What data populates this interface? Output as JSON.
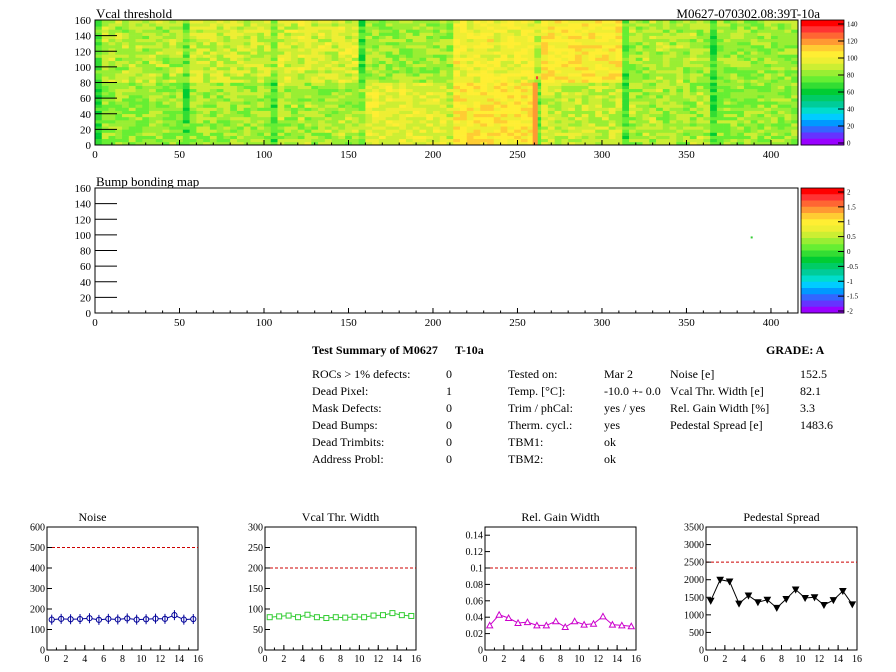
{
  "header": {
    "map1_title": "Vcal threshold",
    "map1_id": "M0627-070302.08:39T-10a",
    "map2_title": "Bump bonding map"
  },
  "maps": {
    "x_ticks": [
      "0",
      "50",
      "100",
      "150",
      "200",
      "250",
      "300",
      "350",
      "400"
    ],
    "y_ticks": [
      "0",
      "20",
      "40",
      "60",
      "80",
      "100",
      "120",
      "140",
      "160"
    ],
    "xlim": [
      0,
      416
    ],
    "ylim": [
      0,
      160
    ],
    "palette_1": [
      "#9900ff",
      "#6633ff",
      "#3366ff",
      "#0099ff",
      "#00ccff",
      "#00ddcc",
      "#00cc99",
      "#00cc66",
      "#00cc33",
      "#33dd33",
      "#66ee33",
      "#99ee33",
      "#ccee33",
      "#eeee33",
      "#ffee33",
      "#ffcc33",
      "#ff9933",
      "#ff6633",
      "#ff3333",
      "#ff0000"
    ],
    "palette_2": [
      "#9900ff",
      "#6633ff",
      "#3366ff",
      "#0099ff",
      "#00ccff",
      "#00ddcc",
      "#00cc99",
      "#00cc66",
      "#00cc33",
      "#33dd33",
      "#66ee33",
      "#99ee33",
      "#ccee33",
      "#eeee33",
      "#ffee33",
      "#ffcc33",
      "#ff9933",
      "#ff6633",
      "#ff3333",
      "#ff0000"
    ],
    "scale1_labels": [
      "140",
      "120",
      "100",
      "80",
      "60",
      "40",
      "20",
      "0"
    ],
    "scale2_labels": [
      "2",
      "1.5",
      "1",
      "0.5",
      "0",
      "-0.5",
      "-1",
      "-1.5",
      "-2"
    ]
  },
  "summary": {
    "title": "Test Summary of M0627",
    "subtitle": "T-10a",
    "grade": "GRADE:  A",
    "left": [
      {
        "label": "ROCs > 1% defects:",
        "value": "0"
      },
      {
        "label": "Dead Pixel:",
        "value": "1"
      },
      {
        "label": "Mask Defects:",
        "value": "0"
      },
      {
        "label": "Dead Bumps:",
        "value": "0"
      },
      {
        "label": "Dead Trimbits:",
        "value": "0"
      },
      {
        "label": "Address Probl:",
        "value": "0"
      }
    ],
    "middle": [
      {
        "label": "Tested on:",
        "value": "Mar 2"
      },
      {
        "label": "Temp. [°C]:",
        "value": "-10.0 +- 0.0"
      },
      {
        "label": "Trim / phCal:",
        "value": "yes / yes"
      },
      {
        "label": "Therm. cycl.:",
        "value": "yes"
      },
      {
        "label": "TBM1:",
        "value": "ok"
      },
      {
        "label": "TBM2:",
        "value": "ok"
      }
    ],
    "right": [
      {
        "label": "Noise [e]",
        "value": "152.5"
      },
      {
        "label": "Vcal Thr. Width [e]",
        "value": "82.1"
      },
      {
        "label": "Rel. Gain Width [%]",
        "value": "3.3"
      },
      {
        "label": "Pedestal Spread [e]",
        "value": "1483.6"
      }
    ]
  },
  "chart_data": [
    {
      "type": "heatmap",
      "title": "Vcal threshold",
      "xlim": [
        0,
        416
      ],
      "ylim": [
        0,
        160
      ],
      "zlim": [
        0,
        145
      ],
      "description_values": "16 ROC blocks of 52x80 pixels, mostly ~80-110 (green/yellow)",
      "roc_levels_bottom": [
        82,
        80,
        85,
        82,
        86,
        84,
        96,
        92,
        105,
        100,
        90,
        88,
        86,
        84,
        82,
        80
      ],
      "roc_levels_top": [
        88,
        92,
        92,
        96,
        94,
        88,
        84,
        86,
        100,
        102,
        104,
        100,
        86,
        82,
        84,
        82
      ]
    },
    {
      "type": "heatmap",
      "title": "Bump bonding map",
      "xlim": [
        0,
        416
      ],
      "ylim": [
        0,
        160
      ],
      "zlim": [
        -2,
        2
      ]
    },
    {
      "type": "scatter",
      "title": "Noise",
      "x": [
        0,
        1,
        2,
        3,
        4,
        5,
        6,
        7,
        8,
        9,
        10,
        11,
        12,
        13,
        14,
        15
      ],
      "y": [
        148,
        152,
        150,
        151,
        155,
        147,
        152,
        149,
        154,
        148,
        150,
        153,
        152,
        170,
        148,
        151
      ],
      "xlim": [
        0,
        16
      ],
      "ylim": [
        0,
        600
      ],
      "cut": 500,
      "xticks": [
        "0",
        "2",
        "4",
        "6",
        "8",
        "10",
        "12",
        "14",
        "16"
      ],
      "yticks": [
        "0",
        "100",
        "200",
        "300",
        "400",
        "500",
        "600"
      ],
      "color": "#000099",
      "marker": "circle"
    },
    {
      "type": "scatter",
      "title": "Vcal Thr. Width",
      "x": [
        0,
        1,
        2,
        3,
        4,
        5,
        6,
        7,
        8,
        9,
        10,
        11,
        12,
        13,
        14,
        15
      ],
      "y": [
        80,
        82,
        84,
        80,
        86,
        80,
        78,
        80,
        79,
        81,
        80,
        84,
        85,
        90,
        85,
        83
      ],
      "xlim": [
        0,
        16
      ],
      "ylim": [
        0,
        300
      ],
      "cut": 200,
      "xticks": [
        "0",
        "2",
        "4",
        "6",
        "8",
        "10",
        "12",
        "14",
        "16"
      ],
      "yticks": [
        "0",
        "50",
        "100",
        "150",
        "200",
        "250",
        "300"
      ],
      "color": "#33cc33",
      "marker": "square"
    },
    {
      "type": "line",
      "title": "Rel. Gain Width",
      "x": [
        0,
        1,
        2,
        3,
        4,
        5,
        6,
        7,
        8,
        9,
        10,
        11,
        12,
        13,
        14,
        15
      ],
      "y": [
        0.03,
        0.043,
        0.039,
        0.033,
        0.034,
        0.03,
        0.03,
        0.035,
        0.028,
        0.035,
        0.031,
        0.032,
        0.041,
        0.031,
        0.03,
        0.029
      ],
      "xlim": [
        0,
        16
      ],
      "ylim": [
        0,
        0.15
      ],
      "cut": 0.1,
      "xticks": [
        "0",
        "2",
        "4",
        "6",
        "8",
        "10",
        "12",
        "14",
        "16"
      ],
      "yticks": [
        "0",
        "0.02",
        "0.04",
        "0.06",
        "0.08",
        "0.1",
        "0.12",
        "0.14"
      ],
      "color": "#cc00cc",
      "marker": "triangle"
    },
    {
      "type": "line",
      "title": "Pedestal Spread",
      "x": [
        0,
        1,
        2,
        3,
        4,
        5,
        6,
        7,
        8,
        9,
        10,
        11,
        12,
        13,
        14,
        15
      ],
      "y": [
        1400,
        2000,
        1950,
        1320,
        1550,
        1360,
        1430,
        1200,
        1450,
        1720,
        1480,
        1500,
        1280,
        1420,
        1680,
        1300
      ],
      "xlim": [
        0,
        16
      ],
      "ylim": [
        0,
        3500
      ],
      "cut": 2500,
      "xticks": [
        "0",
        "2",
        "4",
        "6",
        "8",
        "10",
        "12",
        "14",
        "16"
      ],
      "yticks": [
        "0",
        "500",
        "1000",
        "1500",
        "2000",
        "2500",
        "3000",
        "3500"
      ],
      "color": "#000000",
      "marker": "triangle-down"
    }
  ]
}
